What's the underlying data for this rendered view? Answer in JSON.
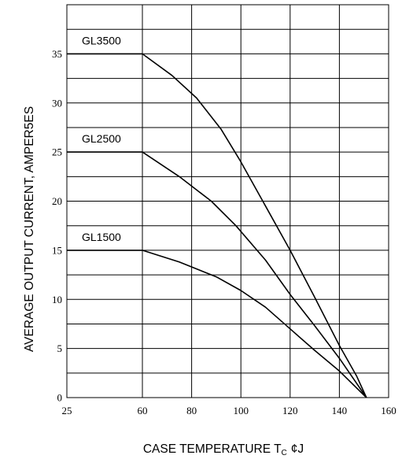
{
  "chart_data": {
    "type": "line",
    "xlabel": "CASE TEMPERATURE T",
    "xlabel_subscript": "C",
    "xlabel_unit": "¢J",
    "ylabel": "AVERAGE OUTPUT CURRENT, AMPER5ES",
    "xlim": [
      25,
      160
    ],
    "ylim": [
      0,
      40
    ],
    "grid": true,
    "x_ticks": [
      "25",
      "60",
      "80",
      "100",
      "120",
      "140",
      "160"
    ],
    "y_ticks": [
      "0",
      "5",
      "10",
      "15",
      "20",
      "25",
      "30",
      "35"
    ],
    "series": [
      {
        "name": "GL3500",
        "x": [
          25,
          60,
          72,
          82,
          92,
          100,
          110,
          120,
          130,
          140,
          147,
          151
        ],
        "y": [
          35,
          35,
          32.8,
          30.5,
          27.3,
          24,
          19.5,
          15,
          10.2,
          5.3,
          2.2,
          0
        ]
      },
      {
        "name": "GL2500",
        "x": [
          25,
          60,
          75,
          88,
          98,
          110,
          120,
          130,
          140,
          151
        ],
        "y": [
          25,
          25,
          22.5,
          20,
          17.5,
          14,
          10.5,
          7.3,
          4,
          0
        ]
      },
      {
        "name": "GL1500",
        "x": [
          25,
          60,
          75,
          90,
          100,
          110,
          120,
          130,
          140,
          151
        ],
        "y": [
          15,
          15,
          13.8,
          12.3,
          10.9,
          9.2,
          7,
          4.8,
          2.7,
          0
        ]
      }
    ]
  }
}
